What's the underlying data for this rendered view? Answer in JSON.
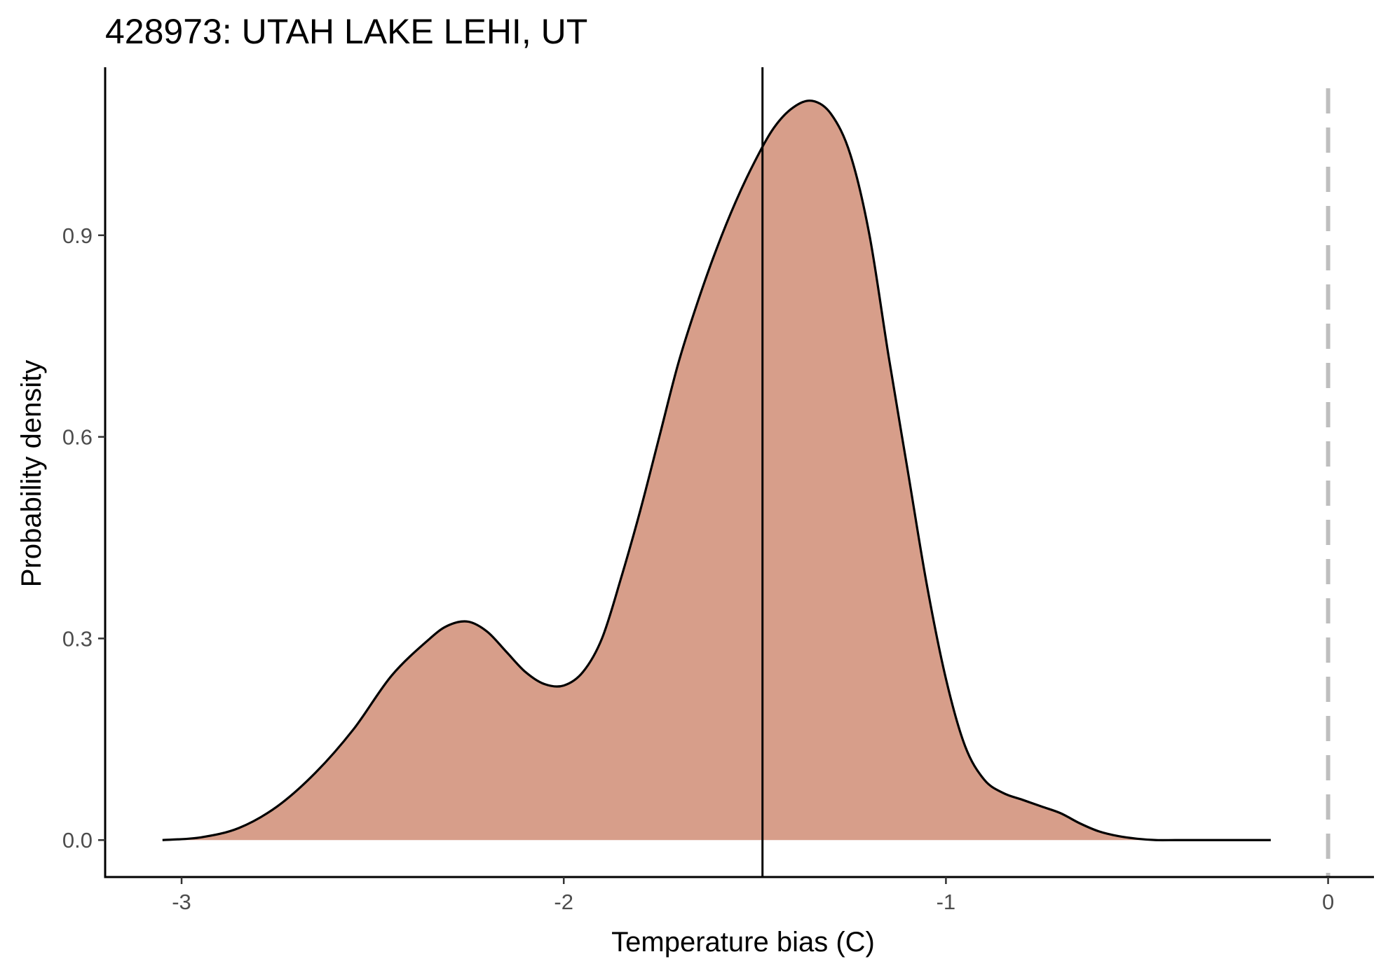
{
  "chart_data": {
    "type": "area",
    "title": "428973: UTAH LAKE LEHI, UT",
    "xlabel": "Temperature bias (C)",
    "ylabel": "Probability density",
    "xlim": [
      -3.2,
      0.12
    ],
    "ylim": [
      -0.055,
      1.15
    ],
    "x_ticks": [
      -3,
      -2,
      -1,
      0
    ],
    "x_tick_labels": [
      "-3",
      "-2",
      "-1",
      "0"
    ],
    "y_ticks": [
      0.0,
      0.3,
      0.6,
      0.9
    ],
    "y_tick_labels": [
      "0.0",
      "0.3",
      "0.6",
      "0.9"
    ],
    "grid": false,
    "legend": "none",
    "series": [
      {
        "fill_color": "#d79e8a",
        "line_color": "#000000",
        "x": [
          -3.05,
          -2.95,
          -2.85,
          -2.75,
          -2.65,
          -2.55,
          -2.45,
          -2.35,
          -2.3,
          -2.25,
          -2.2,
          -2.15,
          -2.1,
          -2.05,
          -2.0,
          -1.95,
          -1.9,
          -1.85,
          -1.8,
          -1.75,
          -1.7,
          -1.65,
          -1.6,
          -1.55,
          -1.5,
          -1.45,
          -1.4,
          -1.35,
          -1.3,
          -1.25,
          -1.2,
          -1.15,
          -1.1,
          -1.05,
          -1.0,
          -0.95,
          -0.9,
          -0.85,
          -0.8,
          -0.75,
          -0.7,
          -0.65,
          -0.6,
          -0.55,
          -0.5,
          -0.45,
          -0.4,
          -0.35,
          -0.3,
          -0.25,
          -0.2,
          -0.15
        ],
        "y": [
          0.0,
          0.004,
          0.018,
          0.05,
          0.1,
          0.165,
          0.245,
          0.3,
          0.32,
          0.325,
          0.31,
          0.28,
          0.25,
          0.232,
          0.23,
          0.25,
          0.3,
          0.39,
          0.49,
          0.6,
          0.71,
          0.8,
          0.88,
          0.95,
          1.01,
          1.06,
          1.09,
          1.1,
          1.08,
          1.02,
          0.9,
          0.72,
          0.55,
          0.38,
          0.24,
          0.14,
          0.09,
          0.07,
          0.06,
          0.05,
          0.04,
          0.025,
          0.013,
          0.006,
          0.002,
          0.0,
          0.0,
          0.0,
          0.0,
          0.0,
          0.0,
          0.0
        ]
      }
    ],
    "reference_lines": [
      {
        "axis": "x",
        "value": -1.48,
        "color": "#000000",
        "style": "solid"
      },
      {
        "axis": "x",
        "value": 0.0,
        "color": "#bebebe",
        "style": "dashed"
      }
    ]
  }
}
